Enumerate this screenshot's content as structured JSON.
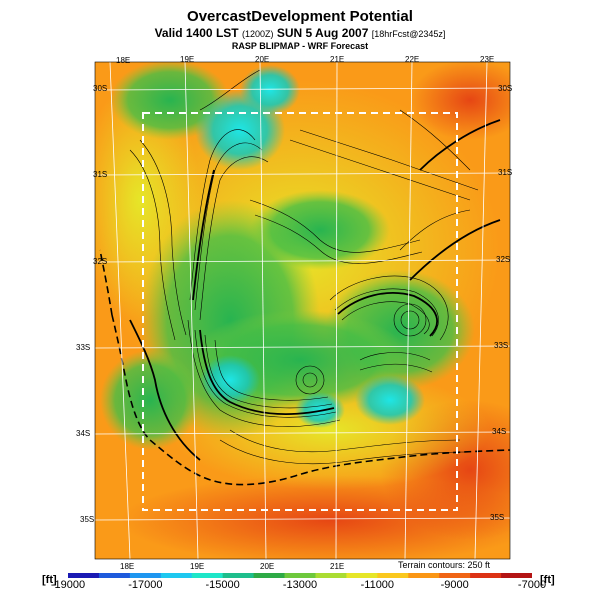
{
  "title": "OvercastDevelopment Potential",
  "subtitle": {
    "main": "Valid 1400 LST",
    "utc": "(1200Z)",
    "date": "SUN 5 Aug 2007",
    "forecast": "[18hrFcst@2345z]"
  },
  "model_line": "RASP BLIPMAP - WRF Forecast",
  "map": {
    "top_longitudes": [
      "18E",
      "19E",
      "20E",
      "21E",
      "22E",
      "23E"
    ],
    "bottom_longitudes": [
      "18E",
      "19E",
      "20E",
      "21E"
    ],
    "left_latitudes": [
      "30S",
      "31S",
      "32S",
      "33S",
      "34S",
      "35S"
    ],
    "right_latitudes": [
      "30S",
      "31S",
      "32S",
      "33S",
      "34S",
      "35S"
    ],
    "terrain_note": "Terrain contours: 250 ft"
  },
  "colorbar": {
    "unit_label": "[ft]",
    "min": -19000,
    "max": -7000,
    "tick_labels": [
      "-19000",
      "-17000",
      "-15000",
      "-13000",
      "-11000",
      "-9000",
      "-7000"
    ],
    "colors": [
      "#1a1ab4",
      "#1e5adc",
      "#1e96f0",
      "#1ec8f0",
      "#1ee6c8",
      "#1ebe8c",
      "#2eaa46",
      "#6ec83c",
      "#aadc32",
      "#e6e628",
      "#fac81e",
      "#fa9614",
      "#f06414",
      "#dc3214",
      "#b41414"
    ]
  }
}
